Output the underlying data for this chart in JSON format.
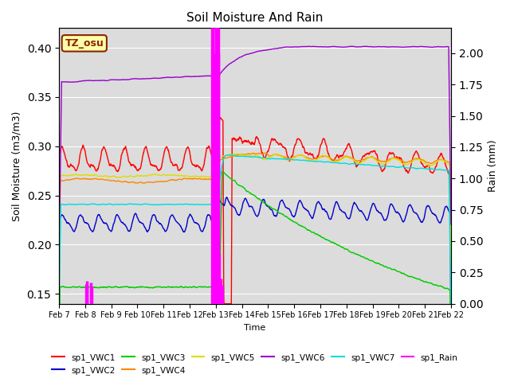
{
  "title": "Soil Moisture And Rain",
  "xlabel": "Time",
  "ylabel_left": "Soil Moisture (m3/m3)",
  "ylabel_right": "Rain (mm)",
  "ylim_left": [
    0.14,
    0.42
  ],
  "ylim_right": [
    0.0,
    2.2
  ],
  "annotation_text": "TZ_osu",
  "annotation_color": "#8B2500",
  "annotation_bg": "#FFFFAA",
  "background_color": "#DCDCDC",
  "series_colors": {
    "sp1_VWC1": "#FF0000",
    "sp1_VWC2": "#0000CC",
    "sp1_VWC3": "#00CC00",
    "sp1_VWC4": "#FF8800",
    "sp1_VWC5": "#DDDD00",
    "sp1_VWC6": "#9900CC",
    "sp1_VWC7": "#00DDDD",
    "sp1_Rain": "#FF00FF"
  },
  "tick_labels": [
    "Feb 7",
    "Feb 8",
    "Feb 9",
    "Feb 10",
    "Feb 11",
    "Feb 12",
    "Feb 13",
    "Feb 14",
    "Feb 15",
    "Feb 16",
    "Feb 17",
    "Feb 18",
    "Feb 19",
    "Feb 20",
    "Feb 21",
    "Feb 22"
  ],
  "legend_order": [
    "sp1_VWC1",
    "sp1_VWC2",
    "sp1_VWC3",
    "sp1_VWC4",
    "sp1_VWC5",
    "sp1_VWC6",
    "sp1_VWC7",
    "sp1_Rain"
  ]
}
